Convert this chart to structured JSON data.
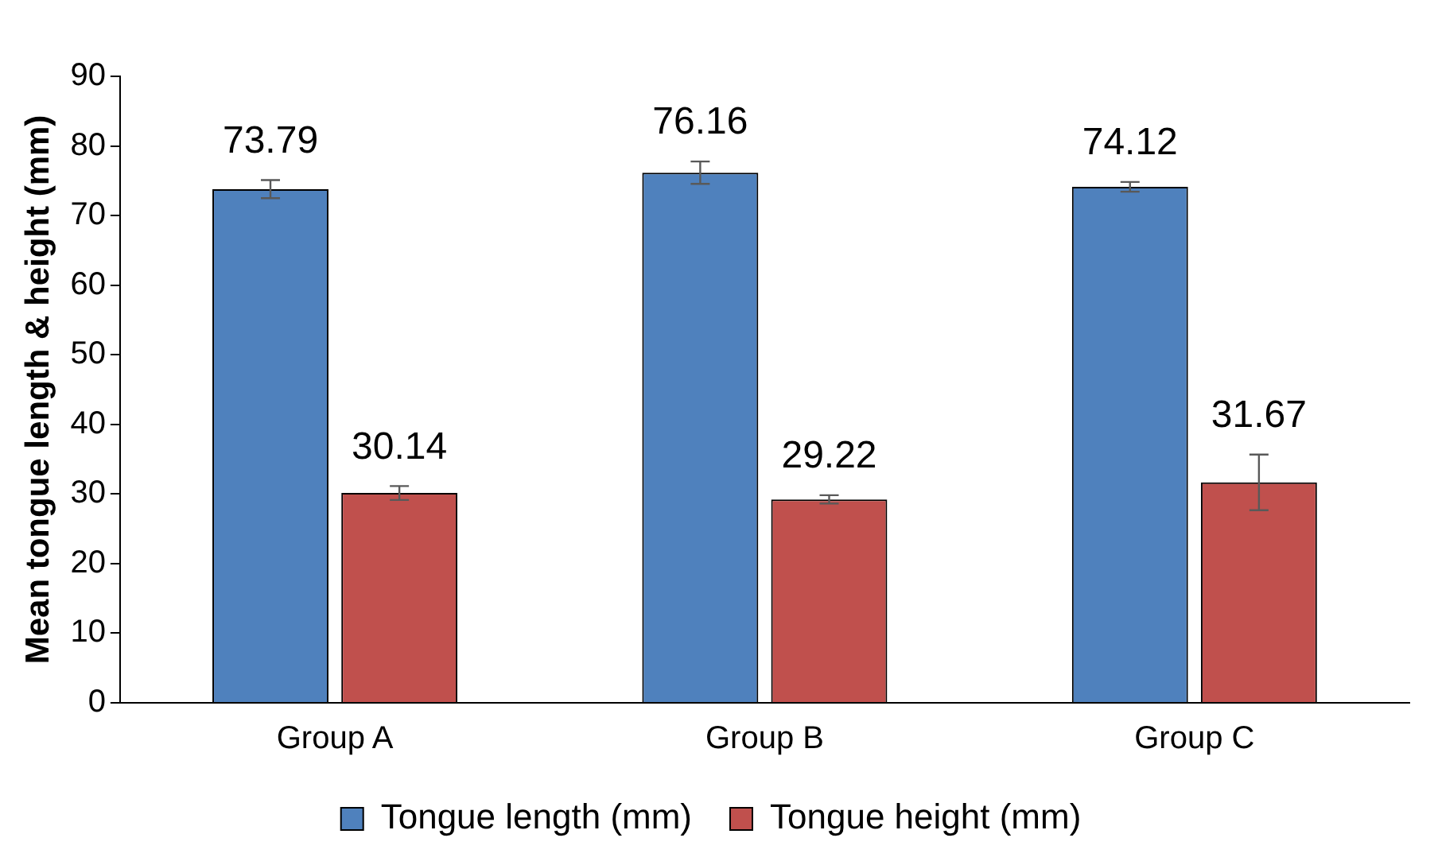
{
  "chart_data": {
    "type": "bar",
    "ylabel": "Mean tongue length & height (mm)",
    "categories": [
      "Group A",
      "Group B",
      "Group C"
    ],
    "series": [
      {
        "name": "Tongue length (mm)",
        "color": "#4f81bd",
        "values": [
          73.79,
          76.16,
          74.12
        ],
        "errors": [
          1.3,
          1.6,
          0.7
        ]
      },
      {
        "name": "Tongue height (mm)",
        "color": "#c0504d",
        "values": [
          30.14,
          29.22,
          31.67
        ],
        "errors": [
          1.0,
          0.6,
          4.0
        ]
      }
    ],
    "ylim": [
      0,
      90
    ],
    "yticks": [
      0,
      10,
      20,
      30,
      40,
      50,
      60,
      70,
      80,
      90
    ],
    "grid": false,
    "legend": "bottom",
    "data_labels": true
  }
}
